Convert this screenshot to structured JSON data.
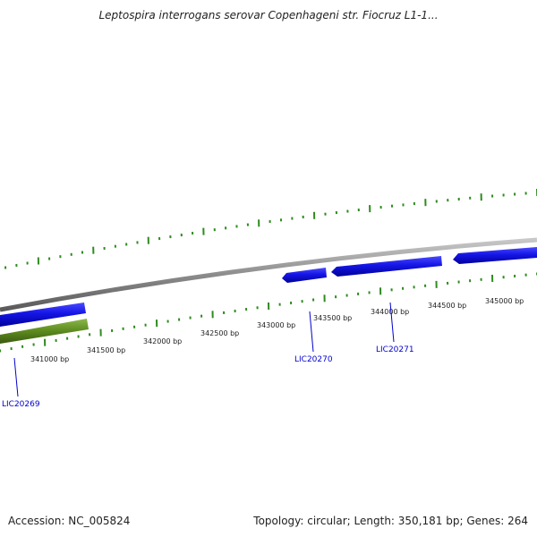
{
  "title": "Leptospira interrogans serovar Copenhageni str. Fiocruz L1-1...",
  "footer": {
    "accession": "Accession: NC_005824",
    "summary": "Topology: circular; Length: 350,181 bp; Genes: 264"
  },
  "ticks": [
    "341000 bp",
    "341500 bp",
    "342000 bp",
    "342500 bp",
    "343000 bp",
    "343500 bp",
    "344000 bp",
    "344500 bp",
    "345000 bp"
  ],
  "genes": [
    {
      "name": "LIC20269"
    },
    {
      "name": "LIC20270"
    },
    {
      "name": "LIC20271"
    }
  ],
  "colors": {
    "backbone": "#8c8c8c",
    "gene": "#1515e6",
    "gene_dark": "#0000aa",
    "gc_track": "#5c8a1e",
    "ticks": "#2e8b1e"
  }
}
